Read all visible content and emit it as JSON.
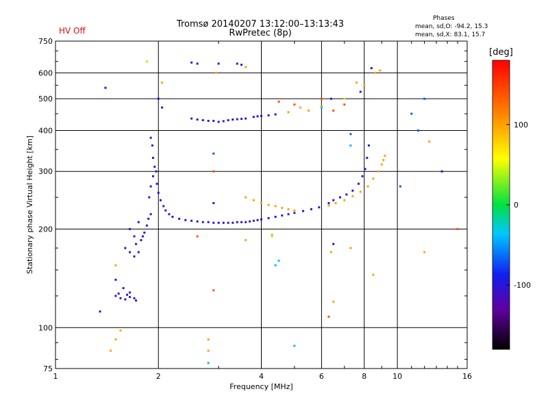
{
  "header": {
    "title_line1": "Tromsø 20140207 13:12:00–13:13:43",
    "title_line2": "RwPretec (8p)",
    "hv_status": "HV Off"
  },
  "phase_box": {
    "heading": "Phases",
    "o_mode": "mean, sd,O: -94.2, 15.3",
    "x_mode": "mean, sd,X: 83.1, 15.7"
  },
  "colorbar": {
    "label": "[deg]",
    "range": [
      -180,
      180
    ],
    "ticks": [
      {
        "label": "100",
        "value": 100
      },
      {
        "label": "0",
        "value": 0
      },
      {
        "label": "-100",
        "value": -100
      }
    ]
  },
  "chart_data": {
    "type": "scatter",
    "xlabel": "Frequency [MHz]",
    "ylabel": "Stationary phase Virtual Height [km]",
    "xscale": "log",
    "yscale": "log",
    "xlim": [
      1,
      16
    ],
    "ylim": [
      75,
      750
    ],
    "xticks": [
      {
        "label": "1",
        "value": 1
      },
      {
        "label": "2",
        "value": 2
      },
      {
        "label": "4",
        "value": 4
      },
      {
        "label": "6",
        "value": 6
      },
      {
        "label": "8",
        "value": 8
      },
      {
        "label": "10",
        "value": 10
      },
      {
        "label": "16",
        "value": 16
      }
    ],
    "yticks": [
      {
        "label": "75",
        "value": 75
      },
      {
        "label": "100",
        "value": 100
      },
      {
        "label": "200",
        "value": 200
      },
      {
        "label": "300",
        "value": 300
      },
      {
        "label": "400",
        "value": 400
      },
      {
        "label": "500",
        "value": 500
      },
      {
        "label": "600",
        "value": 600
      },
      {
        "label": "750",
        "value": 750
      }
    ],
    "grid": true,
    "series": [
      {
        "phase": -100,
        "points": [
          [
            1.55,
            123
          ],
          [
            1.6,
            122
          ],
          [
            1.65,
            124
          ],
          [
            1.7,
            123
          ],
          [
            1.72,
            121
          ],
          [
            1.65,
            128
          ],
          [
            1.62,
            126
          ],
          [
            1.5,
            125
          ],
          [
            1.53,
            127
          ],
          [
            1.58,
            132
          ],
          [
            1.5,
            140
          ],
          [
            1.6,
            175
          ],
          [
            1.65,
            170
          ],
          [
            1.7,
            165
          ],
          [
            1.72,
            180
          ],
          [
            1.75,
            170
          ],
          [
            1.78,
            185
          ],
          [
            1.8,
            190
          ],
          [
            1.82,
            195
          ],
          [
            1.85,
            205
          ],
          [
            1.87,
            215
          ],
          [
            1.9,
            222
          ],
          [
            1.88,
            250
          ],
          [
            1.9,
            270
          ],
          [
            1.93,
            290
          ],
          [
            1.95,
            310
          ],
          [
            1.92,
            360
          ],
          [
            1.9,
            380
          ],
          [
            1.93,
            330
          ],
          [
            1.97,
            300
          ],
          [
            1.98,
            275
          ],
          [
            1.65,
            200
          ],
          [
            1.7,
            190
          ],
          [
            1.75,
            210
          ],
          [
            2.0,
            258
          ],
          [
            2.03,
            245
          ],
          [
            2.07,
            235
          ],
          [
            2.1,
            228
          ],
          [
            2.15,
            222
          ],
          [
            2.2,
            218
          ],
          [
            2.3,
            215
          ],
          [
            2.4,
            213
          ],
          [
            2.5,
            212
          ],
          [
            2.6,
            211
          ],
          [
            2.7,
            210
          ],
          [
            2.8,
            210
          ],
          [
            2.9,
            209
          ],
          [
            3.0,
            209
          ],
          [
            3.1,
            209
          ],
          [
            3.2,
            209
          ],
          [
            3.3,
            209
          ],
          [
            3.4,
            210
          ],
          [
            3.5,
            210
          ],
          [
            3.6,
            210
          ],
          [
            3.7,
            211
          ],
          [
            3.8,
            212
          ],
          [
            3.9,
            213
          ],
          [
            4.0,
            214
          ],
          [
            4.2,
            216
          ],
          [
            4.4,
            218
          ],
          [
            4.6,
            220
          ],
          [
            4.8,
            222
          ],
          [
            5.0,
            224
          ],
          [
            5.3,
            227
          ],
          [
            5.6,
            230
          ],
          [
            5.9,
            233
          ],
          [
            6.3,
            240
          ],
          [
            6.5,
            245
          ],
          [
            6.8,
            250
          ],
          [
            7.1,
            255
          ],
          [
            7.4,
            262
          ],
          [
            7.7,
            275
          ],
          [
            7.9,
            290
          ],
          [
            8.05,
            305
          ],
          [
            8.15,
            330
          ],
          [
            8.25,
            360
          ],
          [
            2.0,
            500
          ],
          [
            2.05,
            470
          ],
          [
            2.5,
            435
          ],
          [
            2.6,
            432
          ],
          [
            2.7,
            430
          ],
          [
            2.8,
            428
          ],
          [
            2.9,
            428
          ],
          [
            3.0,
            425
          ],
          [
            3.1,
            427
          ],
          [
            3.2,
            430
          ],
          [
            3.3,
            432
          ],
          [
            3.4,
            433
          ],
          [
            3.5,
            434
          ],
          [
            3.6,
            435
          ],
          [
            3.8,
            440
          ],
          [
            3.9,
            442
          ],
          [
            4.0,
            443
          ],
          [
            4.2,
            445
          ],
          [
            4.4,
            448
          ],
          [
            2.5,
            645
          ],
          [
            2.6,
            640
          ],
          [
            3.0,
            640
          ],
          [
            3.4,
            640
          ],
          [
            3.5,
            635
          ],
          [
            1.4,
            540
          ],
          [
            6.4,
            500
          ],
          [
            7.8,
            525
          ],
          [
            8.4,
            620
          ],
          [
            13.5,
            300
          ],
          [
            1.35,
            112
          ],
          [
            6.5,
            180
          ],
          [
            2.9,
            240
          ]
        ]
      },
      {
        "phase": 100,
        "points": [
          [
            3.6,
            250
          ],
          [
            3.8,
            245
          ],
          [
            4.0,
            240
          ],
          [
            4.2,
            237
          ],
          [
            4.4,
            235
          ],
          [
            4.6,
            232
          ],
          [
            4.8,
            230
          ],
          [
            5.0,
            228
          ],
          [
            6.3,
            236
          ],
          [
            6.6,
            240
          ],
          [
            7.0,
            245
          ],
          [
            7.4,
            252
          ],
          [
            7.8,
            260
          ],
          [
            8.2,
            270
          ],
          [
            8.5,
            285
          ],
          [
            8.8,
            300
          ],
          [
            9.0,
            315
          ],
          [
            9.1,
            325
          ],
          [
            9.2,
            335
          ],
          [
            5.2,
            470
          ],
          [
            5.5,
            460
          ],
          [
            6.0,
            475
          ],
          [
            4.8,
            455
          ],
          [
            7.6,
            560
          ],
          [
            8.0,
            550
          ],
          [
            8.6,
            600
          ],
          [
            8.9,
            610
          ],
          [
            1.5,
            92
          ],
          [
            1.55,
            98
          ],
          [
            1.45,
            85
          ],
          [
            2.8,
            92
          ],
          [
            2.8,
            85
          ],
          [
            3.6,
            185
          ],
          [
            4.3,
            192
          ],
          [
            7.3,
            175
          ],
          [
            6.4,
            170
          ],
          [
            6.5,
            120
          ],
          [
            8.5,
            145
          ],
          [
            1.5,
            155
          ],
          [
            2.95,
            600
          ],
          [
            3.6,
            625
          ],
          [
            2.05,
            560
          ],
          [
            12.0,
            170
          ],
          [
            12.4,
            370
          ]
        ]
      },
      {
        "phase": 140,
        "points": [
          [
            4.5,
            490
          ],
          [
            5.0,
            480
          ],
          [
            6.0,
            500
          ],
          [
            6.5,
            460
          ],
          [
            2.9,
            300
          ],
          [
            2.9,
            130
          ],
          [
            7.0,
            480
          ],
          [
            6.3,
            108
          ],
          [
            15.0,
            200
          ],
          [
            2.6,
            190
          ]
        ]
      },
      {
        "phase": 40,
        "points": [
          [
            1.85,
            650
          ],
          [
            4.3,
            190
          ],
          [
            7.0,
            500
          ]
        ]
      },
      {
        "phase": -40,
        "points": [
          [
            4.5,
            160
          ],
          [
            4.4,
            155
          ],
          [
            6.0,
            470
          ],
          [
            2.8,
            78
          ],
          [
            5.0,
            88
          ],
          [
            7.3,
            360
          ]
        ]
      },
      {
        "phase": -70,
        "points": [
          [
            10.2,
            270
          ],
          [
            11.0,
            450
          ],
          [
            11.5,
            400
          ],
          [
            2.9,
            340
          ],
          [
            7.3,
            390
          ],
          [
            12.0,
            500
          ]
        ]
      }
    ]
  }
}
